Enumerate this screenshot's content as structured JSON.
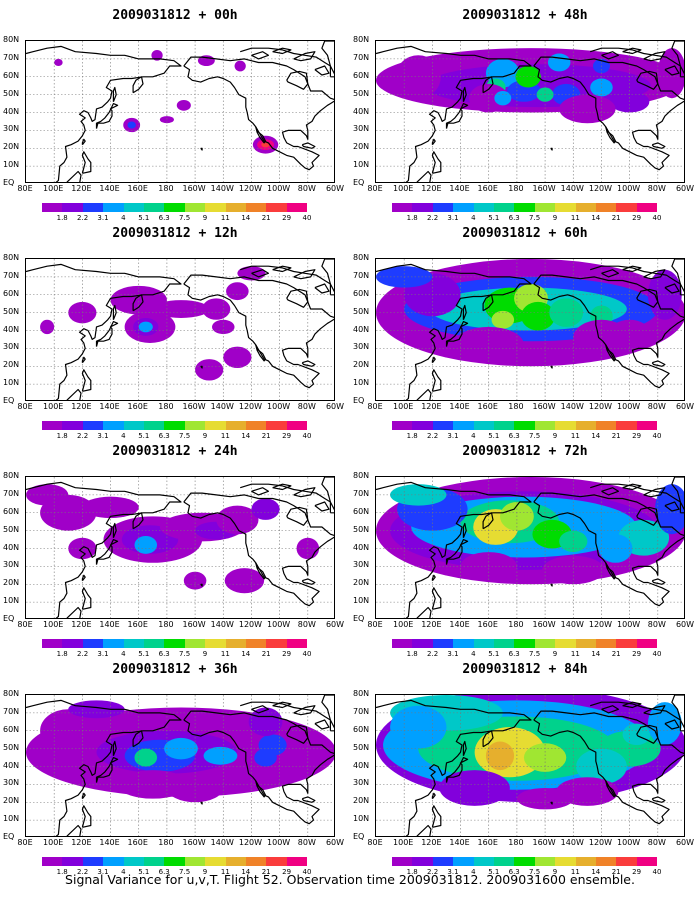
{
  "panels": [
    {
      "title": "2009031812 + 00h",
      "level": 0
    },
    {
      "title": "2009031812 + 48h",
      "level": 4
    },
    {
      "title": "2009031812 + 12h",
      "level": 1
    },
    {
      "title": "2009031812 + 60h",
      "level": 5
    },
    {
      "title": "2009031812 + 24h",
      "level": 2
    },
    {
      "title": "2009031812 + 72h",
      "level": 6
    },
    {
      "title": "2009031812 + 36h",
      "level": 3
    },
    {
      "title": "2009031812 + 84h",
      "level": 7
    }
  ],
  "lat_labels": [
    "80N",
    "70N",
    "60N",
    "50N",
    "40N",
    "30N",
    "20N",
    "10N",
    "EQ"
  ],
  "lon_labels": [
    "80E",
    "100E",
    "120E",
    "140E",
    "160E",
    "180",
    "160W",
    "140W",
    "120W",
    "100W",
    "80W",
    "60W"
  ],
  "colorbar": {
    "ticks": [
      "1.8",
      "2.2",
      "3.1",
      "4",
      "5.1",
      "6.3",
      "7.5",
      "9",
      "11",
      "14",
      "21",
      "29",
      "40"
    ],
    "colors": [
      "#a000c8",
      "#8200dc",
      "#1e3cff",
      "#00a0ff",
      "#00c8c8",
      "#00d28c",
      "#00dc00",
      "#a0e632",
      "#e6dc32",
      "#e6af2d",
      "#f08228",
      "#fa3c3c",
      "#f00082"
    ]
  },
  "caption": "Signal Variance for u,v,T. Flight 52. Observation time 2009031812. 2009031600 ensemble."
}
